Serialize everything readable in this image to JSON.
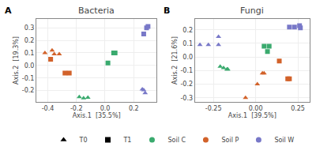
{
  "chart_data": [
    {
      "type": "scatter",
      "label": "A",
      "title": "Bacteria",
      "xlabel": "Axis.1  [35.5%]",
      "ylabel": "Axis.2  [19.3%]",
      "xlim": [
        -0.48,
        0.36
      ],
      "ylim": [
        -0.29,
        0.37
      ],
      "xticks": [
        -0.4,
        -0.2,
        {
          "value": 0.0,
          "label": "0.0"
        },
        0.2
      ],
      "yticks": [
        -0.2,
        -0.1,
        {
          "value": 0.0,
          "label": "0.0"
        },
        0.1,
        0.2,
        0.3
      ],
      "series": [
        {
          "name": "Soil P",
          "time": "T0",
          "color": "#d2622a",
          "marker": "triangle-up",
          "x": [
            -0.42,
            -0.37,
            -0.355,
            -0.32
          ],
          "y": [
            0.1,
            0.12,
            0.09,
            0.09
          ]
        },
        {
          "name": "Soil P",
          "time": "T1",
          "color": "#d2622a",
          "marker": "square",
          "x": [
            -0.38,
            -0.25,
            -0.28
          ],
          "y": [
            0.05,
            -0.06,
            -0.06
          ]
        },
        {
          "name": "Soil C",
          "time": "T0",
          "color": "#3aaa6e",
          "marker": "triangle-up",
          "x": [
            -0.18,
            -0.15,
            -0.12
          ],
          "y": [
            -0.25,
            -0.26,
            -0.255
          ]
        },
        {
          "name": "Soil C",
          "time": "T1",
          "color": "#3aaa6e",
          "marker": "square",
          "x": [
            0.02,
            0.06,
            0.07
          ],
          "y": [
            0.02,
            0.1,
            0.1
          ]
        },
        {
          "name": "Soil W",
          "time": "T0",
          "color": "#7878c8",
          "marker": "triangle-up",
          "x": [
            0.26,
            0.27,
            0.28
          ],
          "y": [
            -0.19,
            -0.195,
            -0.22
          ]
        },
        {
          "name": "Soil W",
          "time": "T1",
          "color": "#7878c8",
          "marker": "square",
          "x": [
            0.27,
            0.29,
            0.3
          ],
          "y": [
            0.25,
            0.3,
            0.31
          ]
        }
      ]
    },
    {
      "type": "scatter",
      "label": "B",
      "title": "Fungi",
      "xlabel": "Axis.1  [39.5%]",
      "ylabel": "Axis.2  [21.6%]",
      "xlim": [
        -0.36,
        0.32
      ],
      "ylim": [
        -0.33,
        0.28
      ],
      "xticks": [
        -0.25,
        {
          "value": 0.0,
          "label": "0.00"
        },
        0.25
      ],
      "yticks": [
        -0.3,
        -0.2,
        -0.1,
        {
          "value": 0.0,
          "label": "0.0"
        },
        0.1,
        0.2
      ],
      "series": [
        {
          "name": "Soil P",
          "time": "T0",
          "color": "#d2622a",
          "marker": "triangle-up",
          "x": [
            -0.06,
            0.01,
            0.04,
            0.05
          ],
          "y": [
            -0.3,
            -0.2,
            -0.12,
            -0.12
          ]
        },
        {
          "name": "Soil P",
          "time": "T1",
          "color": "#d2622a",
          "marker": "square",
          "x": [
            0.14,
            0.19,
            0.2
          ],
          "y": [
            -0.03,
            -0.16,
            -0.16
          ]
        },
        {
          "name": "Soil C",
          "time": "T0",
          "color": "#3aaa6e",
          "marker": "triangle-up",
          "x": [
            -0.21,
            -0.19,
            -0.17,
            -0.165
          ],
          "y": [
            -0.07,
            -0.08,
            -0.09,
            -0.09
          ]
        },
        {
          "name": "Soil C",
          "time": "T1",
          "color": "#3aaa6e",
          "marker": "square",
          "x": [
            0.05,
            0.08,
            0.07
          ],
          "y": [
            0.08,
            0.08,
            0.04
          ]
        },
        {
          "name": "Soil W",
          "time": "T0",
          "color": "#7878c8",
          "marker": "triangle-up",
          "x": [
            -0.33,
            -0.28,
            -0.22,
            -0.22
          ],
          "y": [
            0.09,
            0.09,
            0.15,
            0.09
          ]
        },
        {
          "name": "Soil W",
          "time": "T1",
          "color": "#7878c8",
          "marker": "square",
          "x": [
            0.2,
            0.23,
            0.26,
            0.265
          ],
          "y": [
            0.22,
            0.22,
            0.23,
            0.215
          ]
        }
      ]
    }
  ],
  "legend": "bottom",
  "legend_entries": [
    {
      "name": "T0",
      "marker": "triangle-up",
      "color": "black"
    },
    {
      "name": "T1",
      "marker": "square",
      "color": "black"
    },
    {
      "name": "Soil C",
      "marker": "circle",
      "color": "#3aaa6e"
    },
    {
      "name": "Soil P",
      "marker": "circle",
      "color": "#d2622a"
    },
    {
      "name": "Soil W",
      "marker": "circle",
      "color": "#7878c8"
    }
  ]
}
